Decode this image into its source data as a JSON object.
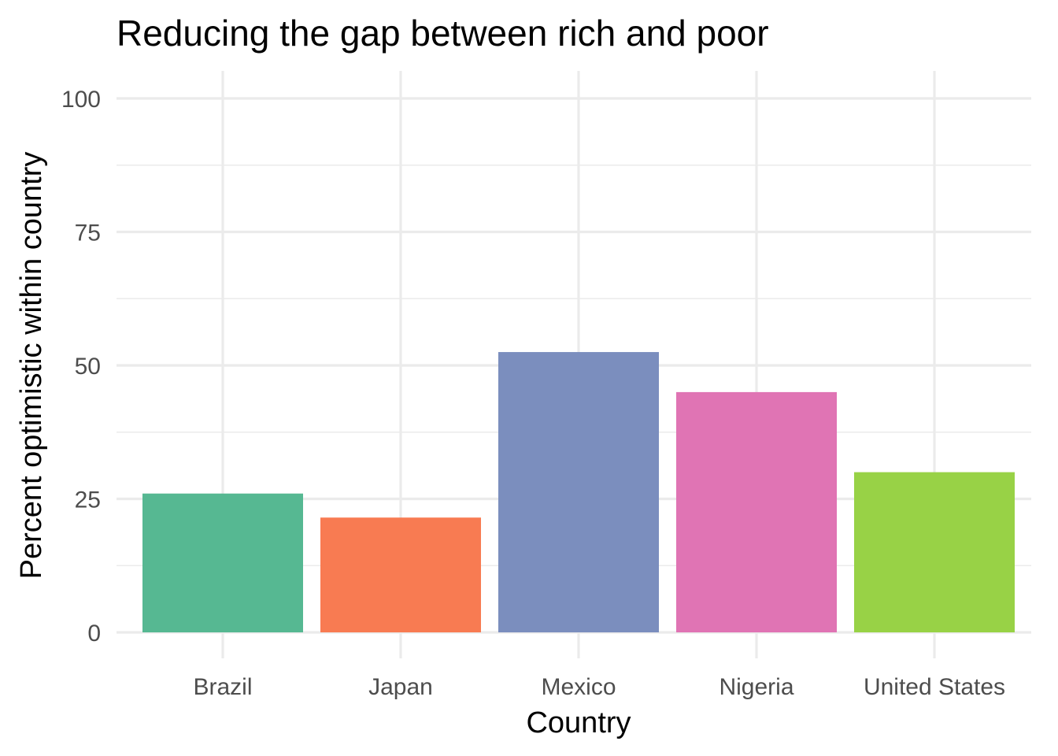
{
  "chart_data": {
    "type": "bar",
    "title": "Reducing the gap between rich and poor",
    "xlabel": "Country",
    "ylabel": "Percent optimistic within country",
    "categories": [
      "Brazil",
      "Japan",
      "Mexico",
      "Nigeria",
      "United States"
    ],
    "values": [
      26,
      21.5,
      52.5,
      45,
      30
    ],
    "colors": [
      "#56b892",
      "#f87b52",
      "#7b8ebe",
      "#e074b4",
      "#98d246"
    ],
    "ylim": [
      0,
      100
    ],
    "yticks": [
      0,
      25,
      50,
      75,
      100
    ],
    "grid": true,
    "legend": "none"
  }
}
